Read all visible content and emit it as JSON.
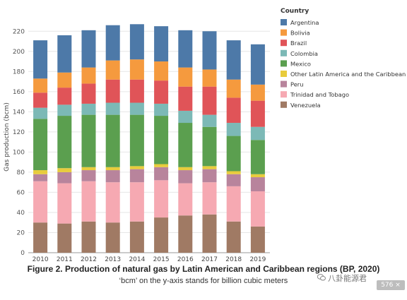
{
  "chart_data": {
    "type": "bar",
    "stacked": true,
    "categories": [
      "2010",
      "2011",
      "2012",
      "2013",
      "2014",
      "2015",
      "2016",
      "2017",
      "2018",
      "2019"
    ],
    "ylabel": "Gas production (bcm)",
    "ylim": [
      0,
      230
    ],
    "yticks": [
      0,
      20,
      40,
      60,
      80,
      100,
      120,
      140,
      160,
      180,
      200,
      220
    ],
    "legend_title": "Country",
    "legend_position": "right",
    "grid": "horizontal",
    "series": [
      {
        "name": "Venezuela",
        "color": "#a07a64",
        "values": [
          30,
          29,
          31,
          30,
          31,
          35,
          37,
          38,
          31,
          26
        ]
      },
      {
        "name": "Trinidad and Tobago",
        "color": "#f6a9b2",
        "values": [
          41,
          40,
          40,
          40,
          39,
          37,
          32,
          32,
          35,
          35
        ]
      },
      {
        "name": "Peru",
        "color": "#b8849c",
        "values": [
          7,
          11,
          11,
          12,
          13,
          13,
          13,
          13,
          12,
          14
        ]
      },
      {
        "name": "Other Latin America and the Caribbean",
        "color": "#e8cc3c",
        "values": [
          4,
          4,
          3,
          3,
          3,
          3,
          3,
          3,
          3,
          3
        ]
      },
      {
        "name": "Mexico",
        "color": "#5b9f4f",
        "values": [
          51,
          52,
          52,
          52,
          51,
          48,
          44,
          39,
          35,
          34
        ]
      },
      {
        "name": "Colombia",
        "color": "#7cb9b6",
        "values": [
          11,
          11,
          11,
          12,
          12,
          12,
          12,
          12,
          13,
          13
        ]
      },
      {
        "name": "Brazil",
        "color": "#e05458",
        "values": [
          15,
          17,
          20,
          23,
          23,
          23,
          24,
          28,
          25,
          26
        ]
      },
      {
        "name": "Bolivia",
        "color": "#f59a3e",
        "values": [
          14,
          15,
          16,
          19,
          20,
          19,
          19,
          17,
          18,
          16
        ]
      },
      {
        "name": "Argentina",
        "color": "#4d79a8",
        "values": [
          38,
          37,
          37,
          35,
          35,
          35,
          37,
          38,
          39,
          40
        ]
      }
    ],
    "legend_order": [
      "Argentina",
      "Bolivia",
      "Brazil",
      "Colombia",
      "Mexico",
      "Other Latin America and the Caribbean",
      "Peru",
      "Trinidad and Tobago",
      "Venezuela"
    ]
  },
  "caption": {
    "title": "Figure 2. Production of natural gas by Latin American and Caribbean regions (BP, 2020)",
    "note": "‘bcm’ on the y-axis stands for billion cubic meters"
  },
  "watermark": {
    "text": "八卦能源君",
    "icon": "wechat-icon"
  },
  "badge": {
    "text": "576 × 663"
  }
}
